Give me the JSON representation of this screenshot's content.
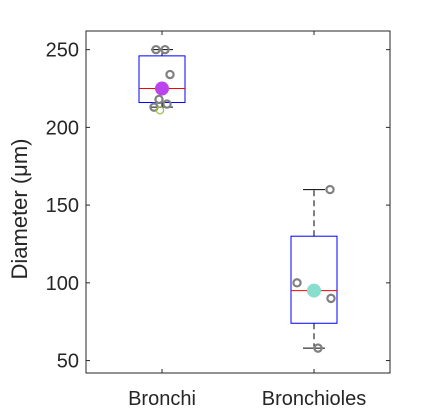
{
  "chart_data": {
    "type": "box",
    "title": "",
    "xlabel": "",
    "ylabel": "Diameter (μm)",
    "ylim": [
      42,
      262
    ],
    "yticks": [
      50,
      100,
      150,
      200,
      250
    ],
    "categories": [
      "Bronchi",
      "Bronchioles"
    ],
    "grid": false,
    "boxes": [
      {
        "category": "Bronchi",
        "whisker_low": 213,
        "q1": 216,
        "median": 225,
        "q3": 246,
        "whisker_high": 250,
        "mean": 225,
        "mean_color": "#bb44ee",
        "points": [
          250,
          250,
          234,
          218,
          215,
          213
        ],
        "outliers": [
          211
        ]
      },
      {
        "category": "Bronchioles",
        "whisker_low": 58,
        "q1": 74,
        "median": 95,
        "q3": 130,
        "whisker_high": 160,
        "mean": 95,
        "mean_color": "#88ddcc",
        "points": [
          160,
          100,
          90,
          58
        ],
        "outliers": []
      }
    ],
    "colors": {
      "box": "#0000ff",
      "median": "#ff0000",
      "whisker": "#000000",
      "points": "#808080",
      "outlier": "#99bb44"
    }
  }
}
